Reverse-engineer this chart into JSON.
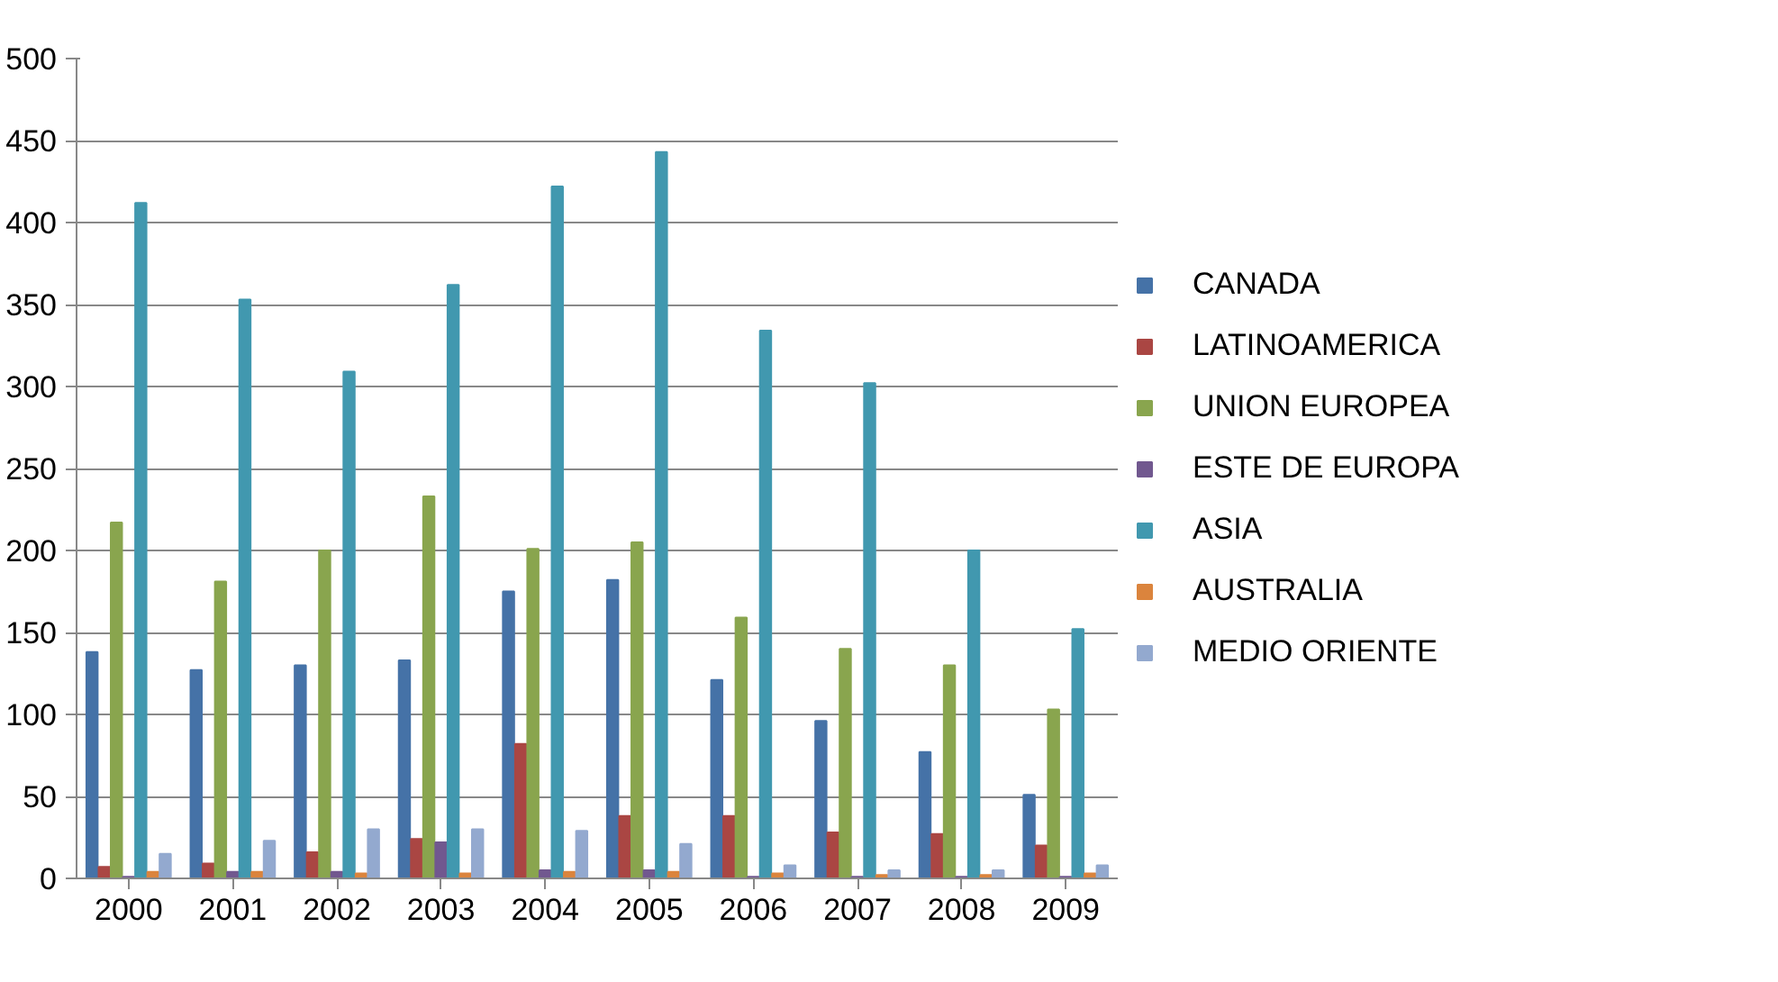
{
  "chart_data": {
    "type": "bar",
    "categories": [
      "2000",
      "2001",
      "2002",
      "2003",
      "2004",
      "2005",
      "2006",
      "2007",
      "2008",
      "2009"
    ],
    "series": [
      {
        "name": "CANADA",
        "color": "#4572a7",
        "values": [
          138,
          127,
          130,
          133,
          175,
          182,
          121,
          96,
          77,
          51
        ]
      },
      {
        "name": "LATINOAMERICA",
        "color": "#aa4643",
        "values": [
          7,
          9,
          16,
          24,
          82,
          38,
          38,
          28,
          27,
          20
        ]
      },
      {
        "name": "UNION EUROPEA",
        "color": "#89a54e",
        "values": [
          217,
          181,
          200,
          233,
          201,
          205,
          159,
          140,
          130,
          103
        ]
      },
      {
        "name": "ESTE DE EUROPA",
        "color": "#71588f",
        "values": [
          1,
          4,
          4,
          22,
          5,
          5,
          1,
          1,
          1,
          1
        ]
      },
      {
        "name": "ASIA",
        "color": "#4198af",
        "values": [
          412,
          353,
          309,
          362,
          422,
          443,
          334,
          302,
          200,
          152
        ]
      },
      {
        "name": "AUSTRALIA",
        "color": "#db843d",
        "values": [
          4,
          4,
          3,
          3,
          4,
          4,
          3,
          2,
          2,
          3
        ]
      },
      {
        "name": "MEDIO ORIENTE",
        "color": "#93a9cf",
        "values": [
          15,
          23,
          30,
          30,
          29,
          21,
          8,
          5,
          5,
          8
        ]
      }
    ],
    "ylim": [
      0,
      500
    ],
    "yticks": [
      0,
      50,
      100,
      150,
      200,
      250,
      300,
      350,
      400,
      450,
      500
    ],
    "grid": "y",
    "legend": "right"
  }
}
